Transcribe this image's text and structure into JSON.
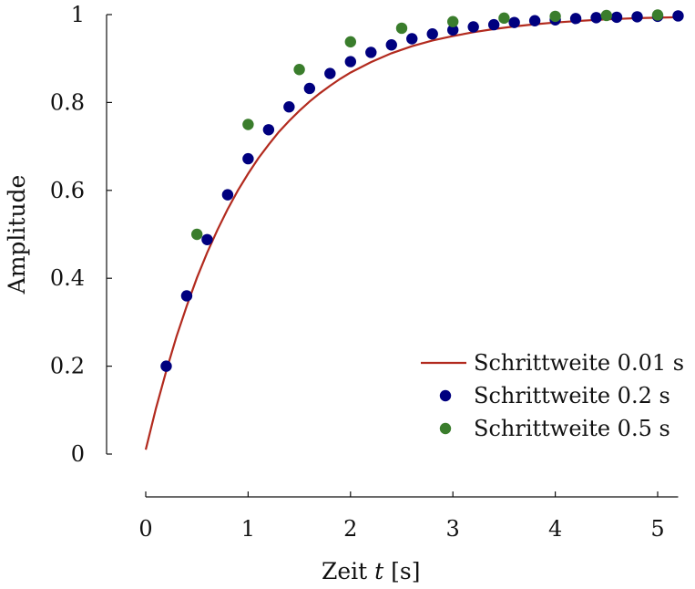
{
  "chart_data": {
    "type": "scatter",
    "xlabel": {
      "pre": "Zeit ",
      "var": "t",
      "post": " [s]"
    },
    "ylabel": "Amplitude",
    "xlim": [
      0,
      5.2
    ],
    "ylim": [
      0,
      1
    ],
    "grid": false,
    "legend_position": "bottom-right",
    "x_ticks": [
      0,
      1,
      2,
      3,
      4,
      5
    ],
    "x_tick_labels": [
      "0",
      "1",
      "2",
      "3",
      "4",
      "5"
    ],
    "y_ticks": [
      0,
      0.2,
      0.4,
      0.6,
      0.8,
      1
    ],
    "y_tick_labels": [
      "0",
      "0.2",
      "0.4",
      "0.6",
      "0.8",
      "1"
    ],
    "series": [
      {
        "name": "Schrittweite 0.01 s",
        "kind": "line",
        "color": "#b22a1e",
        "x": [
          0,
          0.1,
          0.2,
          0.3,
          0.4,
          0.5,
          0.6,
          0.7,
          0.8,
          0.9,
          1.0,
          1.1,
          1.2,
          1.3,
          1.4,
          1.5,
          1.6,
          1.7,
          1.8,
          1.9,
          2.0,
          2.2,
          2.4,
          2.6,
          2.8,
          3.0,
          3.2,
          3.4,
          3.6,
          3.8,
          4.0,
          4.2,
          4.4,
          4.6,
          4.8,
          5.0,
          5.2
        ],
        "y": [
          0.01,
          0.104,
          0.189,
          0.267,
          0.337,
          0.401,
          0.458,
          0.51,
          0.557,
          0.6,
          0.638,
          0.673,
          0.704,
          0.733,
          0.758,
          0.781,
          0.802,
          0.821,
          0.838,
          0.854,
          0.868,
          0.892,
          0.912,
          0.928,
          0.941,
          0.951,
          0.96,
          0.967,
          0.973,
          0.978,
          0.982,
          0.985,
          0.988,
          0.99,
          0.992,
          0.993,
          0.994
        ]
      },
      {
        "name": "Schrittweite 0.2 s",
        "kind": "scatter",
        "color": "#00007f",
        "x": [
          0.2,
          0.4,
          0.6,
          0.8,
          1.0,
          1.2,
          1.4,
          1.6,
          1.8,
          2.0,
          2.2,
          2.4,
          2.6,
          2.8,
          3.0,
          3.2,
          3.4,
          3.6,
          3.8,
          4.0,
          4.2,
          4.4,
          4.6,
          4.8,
          5.0,
          5.2
        ],
        "y": [
          0.2,
          0.36,
          0.488,
          0.59,
          0.672,
          0.738,
          0.79,
          0.832,
          0.866,
          0.893,
          0.914,
          0.931,
          0.945,
          0.956,
          0.965,
          0.972,
          0.977,
          0.982,
          0.986,
          0.988,
          0.991,
          0.993,
          0.994,
          0.995,
          0.996,
          0.997
        ]
      },
      {
        "name": "Schrittweite 0.5 s",
        "kind": "scatter",
        "color": "#3a7d2c",
        "x": [
          0.5,
          1.0,
          1.5,
          2.0,
          2.5,
          3.0,
          3.5,
          4.0,
          4.5,
          5.0
        ],
        "y": [
          0.5,
          0.75,
          0.875,
          0.938,
          0.969,
          0.984,
          0.992,
          0.996,
          0.998,
          0.999
        ]
      }
    ]
  }
}
